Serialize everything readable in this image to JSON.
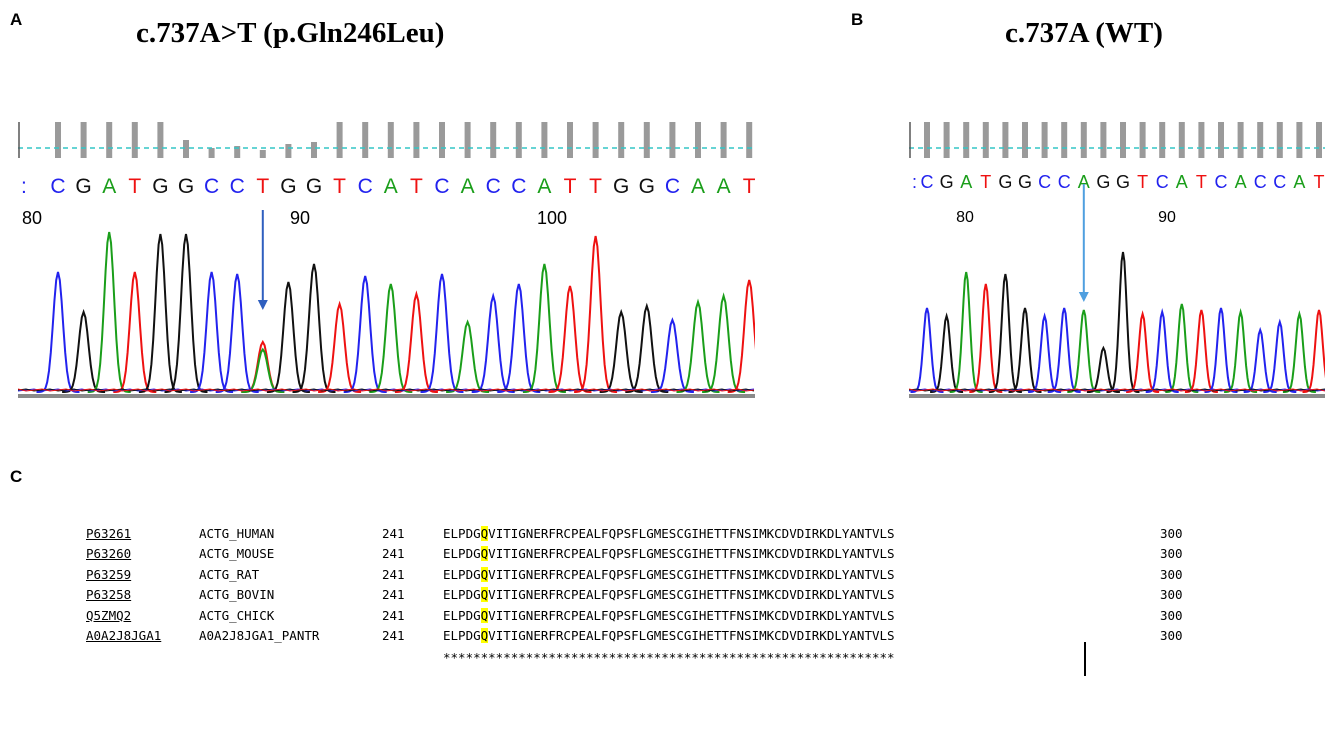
{
  "panels": {
    "a": {
      "letter": "A",
      "title": "c.737A>T (p.Gln246Leu)",
      "bases": "CGATGGCCTGGTCATCACCATTGGCAAT",
      "position_labels": [
        "80",
        "90",
        "100"
      ],
      "variant_base_index": 8
    },
    "b": {
      "letter": "B",
      "title": "c.737A  (WT)",
      "bases": "CGATGGCCAGGTCATCACCAT",
      "position_labels": [
        "80",
        "90"
      ],
      "variant_base_index": 8
    },
    "c": {
      "letter": "C"
    }
  },
  "base_colors": {
    "A": "#1a9e1a",
    "C": "#2222ee",
    "G": "#111111",
    "T": "#ee1111"
  },
  "alignment": {
    "rows": [
      {
        "accession": "P63261",
        "entry": "ACTG_HUMAN",
        "start": "241",
        "seq_pre": "ELPDG",
        "seq_hl": "Q",
        "seq_post": "VITIGNERFRCPEALFQPSFLGMESCGIHETTFNSIMKCDVDIRKDLYANTVLS",
        "end": "300"
      },
      {
        "accession": "P63260",
        "entry": "ACTG_MOUSE",
        "start": "241",
        "seq_pre": "ELPDG",
        "seq_hl": "Q",
        "seq_post": "VITIGNERFRCPEALFQPSFLGMESCGIHETTFNSIMKCDVDIRKDLYANTVLS",
        "end": "300"
      },
      {
        "accession": "P63259",
        "entry": "ACTG_RAT",
        "start": "241",
        "seq_pre": "ELPDG",
        "seq_hl": "Q",
        "seq_post": "VITIGNERFRCPEALFQPSFLGMESCGIHETTFNSIMKCDVDIRKDLYANTVLS",
        "end": "300"
      },
      {
        "accession": "P63258",
        "entry": "ACTG_BOVIN",
        "start": "241",
        "seq_pre": "ELPDG",
        "seq_hl": "Q",
        "seq_post": "VITIGNERFRCPEALFQPSFLGMESCGIHETTFNSIMKCDVDIRKDLYANTVLS",
        "end": "300"
      },
      {
        "accession": "Q5ZMQ2",
        "entry": "ACTG_CHICK",
        "start": "241",
        "seq_pre": "ELPDG",
        "seq_hl": "Q",
        "seq_post": "VITIGNERFRCPEALFQPSFLGMESCGIHETTFNSIMKCDVDIRKDLYANTVLS",
        "end": "300"
      },
      {
        "accession": "A0A2J8JGA1",
        "entry": "A0A2J8JGA1_PANTR",
        "start": "241",
        "seq_pre": "ELPDG",
        "seq_hl": "Q",
        "seq_post": "VITIGNERFRCPEALFQPSFLGMESCGIHETTFNSIMKCDVDIRKDLYANTVLS",
        "end": "300"
      }
    ],
    "consensus": "************************************************************"
  }
}
